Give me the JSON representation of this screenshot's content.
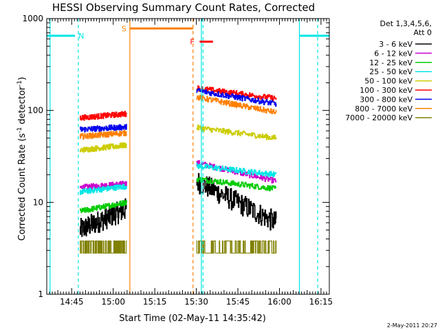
{
  "chart_data": {
    "type": "line",
    "title": "HESSI Observing Summary Count Rates, Corrected",
    "xlabel": "Start Time (02-May-11 14:35:42)",
    "ylabel": "Corrected Count Rate (s",
    "ylabel_sup1": "-1",
    "ylabel_mid": " detector",
    "ylabel_sup2": "-1",
    "ylabel_end": ")",
    "yscale": "log",
    "xlim": [
      14.6,
      16.3
    ],
    "ylim": [
      1,
      1000
    ],
    "xticks": [
      {
        "t": 14.75,
        "label": "14:45"
      },
      {
        "t": 15.0,
        "label": "15:00"
      },
      {
        "t": 15.25,
        "label": "15:15"
      },
      {
        "t": 15.5,
        "label": "15:30"
      },
      {
        "t": 15.75,
        "label": "15:45"
      },
      {
        "t": 16.0,
        "label": "16:00"
      },
      {
        "t": 16.25,
        "label": "16:15"
      }
    ],
    "yticks": [
      {
        "v": 1,
        "label": "1"
      },
      {
        "v": 10,
        "label": "10"
      },
      {
        "v": 100,
        "label": "100"
      },
      {
        "v": 1000,
        "label": "1000"
      }
    ],
    "legend_header": [
      "Det 1,3,4,5,6,",
      "Att 0"
    ],
    "legend_position": "right",
    "intervals": [
      [
        14.8,
        15.08
      ],
      [
        15.5,
        15.98
      ]
    ],
    "series": [
      {
        "name": "3 - 6 keV",
        "color": "#000000",
        "seg1": [
          5,
          8.5
        ],
        "seg2": [
          17,
          6
        ]
      },
      {
        "name": "6 - 12 keV",
        "color": "#cc00cc",
        "seg1": [
          14.5,
          16
        ],
        "seg2": [
          27,
          17
        ]
      },
      {
        "name": "12 - 25 keV",
        "color": "#00cc00",
        "seg1": [
          8,
          10
        ],
        "seg2": [
          18,
          14
        ]
      },
      {
        "name": "25 - 50 keV",
        "color": "#00e6e6",
        "seg1": [
          13,
          15
        ],
        "seg2": [
          25,
          20
        ]
      },
      {
        "name": "50 - 100 keV",
        "color": "#cccc00",
        "seg1": [
          37,
          42
        ],
        "seg2": [
          65,
          50
        ]
      },
      {
        "name": "100 - 300 keV",
        "color": "#ff0000",
        "seg1": [
          83,
          92
        ],
        "seg2": [
          175,
          135
        ]
      },
      {
        "name": "300 - 800 keV",
        "color": "#0000ee",
        "seg1": [
          62,
          66
        ],
        "seg2": [
          165,
          118
        ]
      },
      {
        "name": "800 - 7000 keV",
        "color": "#ff8000",
        "seg1": [
          52,
          57
        ],
        "seg2": [
          140,
          95
        ]
      },
      {
        "name": "7000 - 20000 keV",
        "color": "#808000",
        "seg1": [
          2.6,
          3.2
        ],
        "seg2": [
          2.8,
          3.2
        ]
      }
    ],
    "markers": {
      "night": {
        "label": "N",
        "color": "#00e6e6",
        "level": 650,
        "spans": [
          [
            14.6,
            14.77
          ],
          [
            16.12,
            16.3
          ]
        ],
        "vlines_solid": [
          14.62,
          15.53,
          16.12
        ],
        "vlines_dashed": [
          14.79,
          15.54,
          16.23
        ]
      },
      "saa": {
        "label": "S",
        "color": "#ff8000",
        "level": 780,
        "span": [
          15.1,
          15.48
        ],
        "vline_solid": [
          15.1
        ],
        "vline_dashed": [
          15.48
        ]
      },
      "flare": {
        "label": "F",
        "color": "#ff0000",
        "level": 560,
        "span": [
          15.52,
          15.6
        ]
      }
    },
    "stamp": "2-May-2011 20:27"
  }
}
